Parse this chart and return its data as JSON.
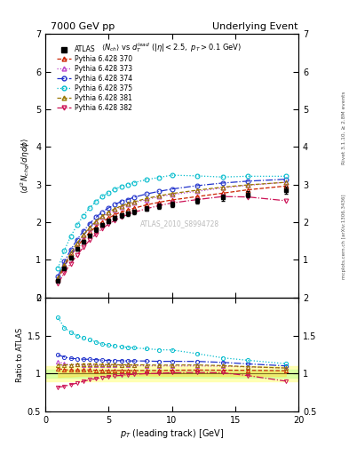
{
  "title_left": "7000 GeV pp",
  "title_right": "Underlying Event",
  "watermark": "ATLAS_2010_S8994728",
  "xlim": [
    0,
    20
  ],
  "ylim_main": [
    0,
    7
  ],
  "ylim_ratio": [
    0.5,
    2.0
  ],
  "atlas_x": [
    1.0,
    1.5,
    2.0,
    2.5,
    3.0,
    3.5,
    4.0,
    4.5,
    5.0,
    5.5,
    6.0,
    6.5,
    7.0,
    8.0,
    9.0,
    10.0,
    12.0,
    14.0,
    16.0,
    19.0
  ],
  "atlas_y": [
    0.45,
    0.78,
    1.05,
    1.28,
    1.48,
    1.65,
    1.8,
    1.93,
    2.03,
    2.11,
    2.18,
    2.23,
    2.28,
    2.36,
    2.43,
    2.48,
    2.56,
    2.65,
    2.74,
    2.85
  ],
  "atlas_yerr": [
    0.02,
    0.03,
    0.04,
    0.04,
    0.04,
    0.05,
    0.05,
    0.05,
    0.06,
    0.06,
    0.06,
    0.06,
    0.06,
    0.06,
    0.07,
    0.07,
    0.07,
    0.08,
    0.08,
    0.09
  ],
  "series": [
    {
      "label": "Pythia 6.428 370",
      "color": "#cc2200",
      "linestyle": "--",
      "marker": "^",
      "x": [
        1.0,
        1.5,
        2.0,
        2.5,
        3.0,
        3.5,
        4.0,
        4.5,
        5.0,
        5.5,
        6.0,
        6.5,
        7.0,
        8.0,
        9.0,
        10.0,
        12.0,
        14.0,
        16.0,
        19.0
      ],
      "y": [
        0.48,
        0.82,
        1.1,
        1.34,
        1.55,
        1.73,
        1.88,
        2.01,
        2.11,
        2.2,
        2.27,
        2.32,
        2.37,
        2.46,
        2.53,
        2.59,
        2.68,
        2.77,
        2.86,
        2.96
      ]
    },
    {
      "label": "Pythia 6.428 373",
      "color": "#bb44cc",
      "linestyle": ":",
      "marker": "^",
      "x": [
        1.0,
        1.5,
        2.0,
        2.5,
        3.0,
        3.5,
        4.0,
        4.5,
        5.0,
        5.5,
        6.0,
        6.5,
        7.0,
        8.0,
        9.0,
        10.0,
        12.0,
        14.0,
        16.0,
        19.0
      ],
      "y": [
        0.52,
        0.88,
        1.17,
        1.43,
        1.65,
        1.84,
        2.0,
        2.14,
        2.25,
        2.34,
        2.41,
        2.47,
        2.52,
        2.6,
        2.68,
        2.73,
        2.82,
        2.91,
        2.98,
        3.06
      ]
    },
    {
      "label": "Pythia 6.428 374",
      "color": "#2233cc",
      "linestyle": "-.",
      "marker": "o",
      "x": [
        1.0,
        1.5,
        2.0,
        2.5,
        3.0,
        3.5,
        4.0,
        4.5,
        5.0,
        5.5,
        6.0,
        6.5,
        7.0,
        8.0,
        9.0,
        10.0,
        12.0,
        14.0,
        16.0,
        19.0
      ],
      "y": [
        0.56,
        0.95,
        1.26,
        1.53,
        1.76,
        1.96,
        2.13,
        2.27,
        2.38,
        2.47,
        2.55,
        2.6,
        2.66,
        2.75,
        2.82,
        2.88,
        2.97,
        3.04,
        3.09,
        3.14
      ]
    },
    {
      "label": "Pythia 6.428 375",
      "color": "#00bbcc",
      "linestyle": ":",
      "marker": "o",
      "x": [
        1.0,
        1.5,
        2.0,
        2.5,
        3.0,
        3.5,
        4.0,
        4.5,
        5.0,
        5.5,
        6.0,
        6.5,
        7.0,
        8.0,
        9.0,
        10.0,
        12.0,
        14.0,
        16.0,
        19.0
      ],
      "y": [
        0.78,
        1.25,
        1.62,
        1.92,
        2.17,
        2.38,
        2.55,
        2.68,
        2.79,
        2.88,
        2.95,
        3.0,
        3.05,
        3.13,
        3.19,
        3.25,
        3.23,
        3.2,
        3.22,
        3.22
      ]
    },
    {
      "label": "Pythia 6.428 381",
      "color": "#997700",
      "linestyle": "--",
      "marker": "^",
      "x": [
        1.0,
        1.5,
        2.0,
        2.5,
        3.0,
        3.5,
        4.0,
        4.5,
        5.0,
        5.5,
        6.0,
        6.5,
        7.0,
        8.0,
        9.0,
        10.0,
        12.0,
        14.0,
        16.0,
        19.0
      ],
      "y": [
        0.5,
        0.87,
        1.17,
        1.44,
        1.66,
        1.86,
        2.02,
        2.16,
        2.27,
        2.36,
        2.43,
        2.49,
        2.54,
        2.63,
        2.7,
        2.76,
        2.85,
        2.93,
        2.99,
        3.06
      ]
    },
    {
      "label": "Pythia 6.428 382",
      "color": "#cc1155",
      "linestyle": "-.",
      "marker": "v",
      "x": [
        1.0,
        1.5,
        2.0,
        2.5,
        3.0,
        3.5,
        4.0,
        4.5,
        5.0,
        5.5,
        6.0,
        6.5,
        7.0,
        8.0,
        9.0,
        10.0,
        12.0,
        14.0,
        16.0,
        19.0
      ],
      "y": [
        0.37,
        0.65,
        0.9,
        1.12,
        1.33,
        1.52,
        1.68,
        1.83,
        1.95,
        2.05,
        2.13,
        2.2,
        2.26,
        2.36,
        2.44,
        2.51,
        2.6,
        2.68,
        2.67,
        2.57
      ]
    }
  ]
}
